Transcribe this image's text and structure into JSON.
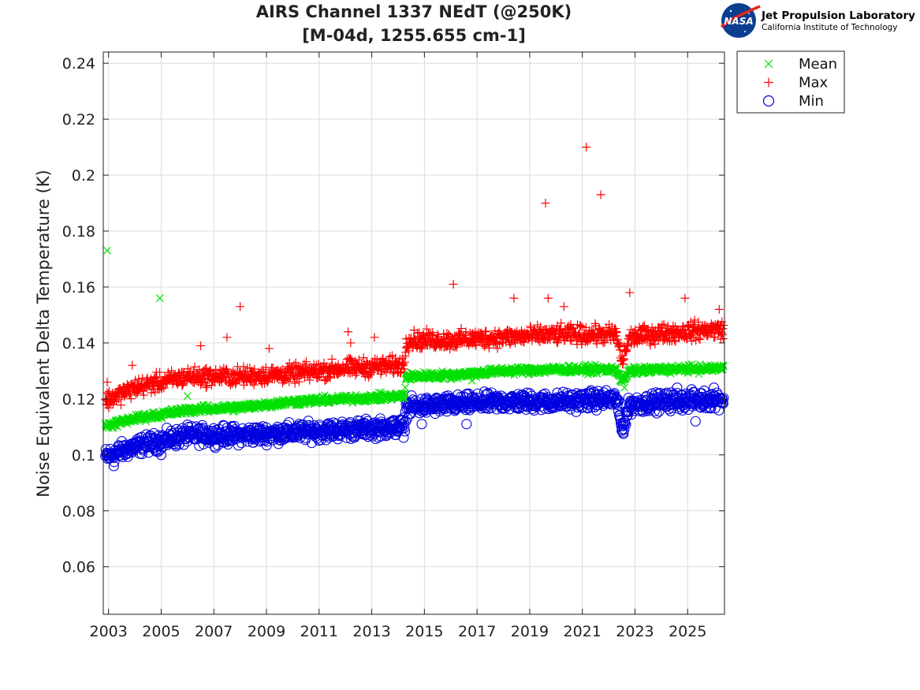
{
  "logo": {
    "text": "NASA",
    "name": "Jet Propulsion Laboratory",
    "subtitle": "California Institute of Technology"
  },
  "chart_data": {
    "type": "scatter",
    "title": "AIRS Channel 1337 NEdT (@250K)",
    "subtitle": "[M-04d, 1255.655 cm-1]",
    "xlabel": "",
    "ylabel": "Noise Equivalent Delta Temperature (K)",
    "xlim": [
      2002.8,
      2026.4
    ],
    "ylim": [
      0.043,
      0.244
    ],
    "x_ticks": [
      2003,
      2005,
      2007,
      2009,
      2011,
      2013,
      2015,
      2017,
      2019,
      2021,
      2023,
      2025
    ],
    "x_tick_labels": [
      "2003",
      "2005",
      "2007",
      "2009",
      "2011",
      "2013",
      "2015",
      "2017",
      "2019",
      "2021",
      "2023",
      "2025"
    ],
    "y_ticks": [
      0.06,
      0.08,
      0.1,
      0.12,
      0.14,
      0.16,
      0.18,
      0.2,
      0.22,
      0.24
    ],
    "y_tick_labels": [
      "0.06",
      "0.08",
      "0.1",
      "0.12",
      "0.14",
      "0.16",
      "0.18",
      "0.2",
      "0.22",
      "0.24"
    ],
    "grid": true,
    "legend_position": "outside-top-right",
    "series": [
      {
        "name": "Mean",
        "marker": "x",
        "color": "#00e000",
        "trend_x": [
          2002.8,
          2004,
          2006,
          2008,
          2010,
          2012,
          2014.25,
          2014.3,
          2016,
          2018,
          2020,
          2022.3,
          2022.5,
          2022.8,
          2024,
          2026.4
        ],
        "trend_y": [
          0.11,
          0.113,
          0.116,
          0.117,
          0.119,
          0.12,
          0.121,
          0.128,
          0.1285,
          0.13,
          0.1305,
          0.1305,
          0.126,
          0.13,
          0.1305,
          0.131
        ],
        "spread": 0.0015,
        "outliers": [
          [
            2002.95,
            0.173
          ],
          [
            2004.95,
            0.156
          ],
          [
            2006.0,
            0.121
          ],
          [
            2016.8,
            0.1265
          ],
          [
            2022.6,
            0.124
          ]
        ]
      },
      {
        "name": "Max",
        "marker": "+",
        "color": "#ff0000",
        "trend_x": [
          2002.8,
          2004,
          2006,
          2008,
          2010,
          2012,
          2014.25,
          2014.3,
          2016,
          2018,
          2020,
          2022.3,
          2022.5,
          2022.8,
          2024,
          2026.4
        ],
        "trend_y": [
          0.119,
          0.124,
          0.128,
          0.128,
          0.129,
          0.131,
          0.132,
          0.141,
          0.141,
          0.142,
          0.143,
          0.143,
          0.133,
          0.142,
          0.1435,
          0.145
        ],
        "spread": 0.0035,
        "outliers": [
          [
            2002.95,
            0.126
          ],
          [
            2003.9,
            0.132
          ],
          [
            2006.5,
            0.139
          ],
          [
            2007.5,
            0.142
          ],
          [
            2008.0,
            0.153
          ],
          [
            2009.1,
            0.138
          ],
          [
            2012.1,
            0.144
          ],
          [
            2012.2,
            0.14
          ],
          [
            2013.1,
            0.142
          ],
          [
            2016.1,
            0.161
          ],
          [
            2018.4,
            0.156
          ],
          [
            2019.6,
            0.19
          ],
          [
            2019.7,
            0.156
          ],
          [
            2020.3,
            0.153
          ],
          [
            2021.15,
            0.21
          ],
          [
            2021.7,
            0.193
          ],
          [
            2022.8,
            0.158
          ],
          [
            2024.9,
            0.156
          ],
          [
            2026.2,
            0.152
          ]
        ]
      },
      {
        "name": "Min",
        "marker": "o",
        "color": "#0000e0",
        "trend_x": [
          2002.8,
          2004,
          2006,
          2008,
          2010,
          2012,
          2014.25,
          2014.3,
          2016,
          2018,
          2020,
          2022.3,
          2022.5,
          2022.8,
          2024,
          2026.4
        ],
        "trend_y": [
          0.099,
          0.103,
          0.107,
          0.107,
          0.108,
          0.109,
          0.11,
          0.117,
          0.118,
          0.119,
          0.119,
          0.12,
          0.109,
          0.118,
          0.119,
          0.12
        ],
        "spread": 0.0035,
        "outliers": [
          [
            2003.2,
            0.096
          ],
          [
            2005.0,
            0.1
          ],
          [
            2014.9,
            0.111
          ],
          [
            2016.6,
            0.111
          ],
          [
            2022.55,
            0.108
          ],
          [
            2024.6,
            0.124
          ],
          [
            2025.3,
            0.112
          ],
          [
            2026.0,
            0.124
          ]
        ]
      }
    ]
  }
}
